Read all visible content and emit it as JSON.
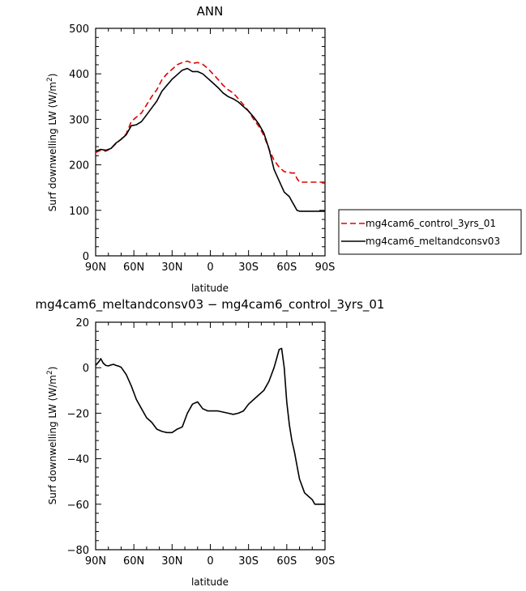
{
  "chart_data": [
    {
      "type": "line",
      "title": "ANN",
      "xlabel": "latitude",
      "ylabel": "Surf downwelling LW (W/m",
      "ylabel_sup": "2",
      "ylabel_end": ")",
      "xlim": [
        90,
        -90
      ],
      "ylim": [
        0,
        500
      ],
      "x_ticks": [
        {
          "value": 90,
          "label": "90N"
        },
        {
          "value": 60,
          "label": "60N"
        },
        {
          "value": 30,
          "label": "30N"
        },
        {
          "value": 0,
          "label": "0"
        },
        {
          "value": -30,
          "label": "30S"
        },
        {
          "value": -60,
          "label": "60S"
        },
        {
          "value": -90,
          "label": "90S"
        }
      ],
      "y_ticks": [
        0,
        100,
        200,
        300,
        400,
        500
      ],
      "legend_position": "right",
      "series": [
        {
          "name": "mg4cam6_control_3yrs_01",
          "color": "#e00000",
          "dash": "dashed",
          "x": [
            90,
            86,
            82,
            78,
            74,
            70,
            66,
            62,
            58,
            54,
            50,
            46,
            42,
            38,
            34,
            30,
            26,
            22,
            18,
            14,
            10,
            6,
            2,
            -2,
            -6,
            -10,
            -14,
            -18,
            -22,
            -26,
            -30,
            -34,
            -38,
            -42,
            -46,
            -50,
            -54,
            -58,
            -62,
            -64,
            -66,
            -68,
            -70,
            -72,
            -74,
            -76,
            -78,
            -80,
            -82,
            -84,
            -86,
            -88,
            -90
          ],
          "values": [
            227,
            232,
            230,
            236,
            247,
            256,
            268,
            295,
            305,
            314,
            332,
            350,
            365,
            387,
            400,
            410,
            420,
            425,
            428,
            423,
            425,
            421,
            412,
            400,
            388,
            375,
            365,
            358,
            345,
            332,
            318,
            300,
            285,
            265,
            235,
            210,
            195,
            185,
            183,
            182,
            182,
            170,
            162,
            162,
            162,
            162,
            162,
            162,
            162,
            162,
            162,
            162,
            162
          ]
        },
        {
          "name": "mg4cam6_meltandconsv03",
          "color": "#000000",
          "dash": "solid",
          "x": [
            90,
            86,
            82,
            78,
            74,
            70,
            66,
            62,
            58,
            54,
            50,
            46,
            42,
            38,
            34,
            30,
            26,
            22,
            18,
            14,
            10,
            6,
            2,
            -2,
            -6,
            -10,
            -14,
            -18,
            -22,
            -26,
            -30,
            -34,
            -38,
            -42,
            -46,
            -50,
            -54,
            -58,
            -62,
            -64,
            -66,
            -68,
            -70,
            -72,
            -74,
            -76,
            -78,
            -80,
            -82,
            -84,
            -86,
            -88,
            -90
          ],
          "values": [
            230,
            234,
            232,
            236,
            248,
            256,
            266,
            286,
            288,
            295,
            310,
            325,
            340,
            362,
            375,
            388,
            398,
            408,
            412,
            405,
            405,
            400,
            390,
            380,
            370,
            358,
            350,
            345,
            338,
            328,
            318,
            305,
            290,
            270,
            236,
            190,
            165,
            140,
            130,
            120,
            110,
            100,
            98,
            98,
            98,
            98,
            98,
            98,
            98,
            98,
            98,
            98,
            98
          ]
        }
      ]
    },
    {
      "type": "line",
      "title": "mg4cam6_meltandconsv03 − mg4cam6_control_3yrs_01",
      "xlabel": "latitude",
      "ylabel": "Surf downwelling LW (W/m",
      "ylabel_sup": "2",
      "ylabel_end": ")",
      "xlim": [
        90,
        -90
      ],
      "ylim": [
        -80,
        20
      ],
      "x_ticks": [
        {
          "value": 90,
          "label": "90N"
        },
        {
          "value": 60,
          "label": "60N"
        },
        {
          "value": 30,
          "label": "30N"
        },
        {
          "value": 0,
          "label": "0"
        },
        {
          "value": -30,
          "label": "30S"
        },
        {
          "value": -60,
          "label": "60S"
        },
        {
          "value": -90,
          "label": "90S"
        }
      ],
      "y_ticks": [
        -80,
        -60,
        -40,
        -20,
        0,
        20
      ],
      "series": [
        {
          "color": "#000000",
          "dash": "solid",
          "x": [
            90,
            87,
            86,
            84,
            82,
            80,
            78,
            76,
            74,
            72,
            70,
            66,
            62,
            58,
            54,
            50,
            46,
            42,
            38,
            34,
            30,
            26,
            22,
            18,
            14,
            10,
            6,
            2,
            -2,
            -6,
            -10,
            -14,
            -18,
            -22,
            -26,
            -30,
            -34,
            -38,
            -42,
            -46,
            -50,
            -52,
            -54,
            -56,
            -58,
            -60,
            -62,
            -64,
            -66,
            -68,
            -70,
            -72,
            -74,
            -76,
            -78,
            -80,
            -82,
            -84,
            -86,
            -88,
            -90
          ],
          "values": [
            1,
            3,
            4,
            2,
            1,
            0.8,
            1.2,
            1.5,
            1,
            0.7,
            0.2,
            -3,
            -8,
            -14,
            -18,
            -22,
            -24,
            -27,
            -28,
            -28.5,
            -28.5,
            -27,
            -26,
            -20,
            -16,
            -15,
            -18,
            -19,
            -19,
            -19,
            -19.5,
            -20,
            -20.5,
            -20,
            -19,
            -16,
            -14,
            -12,
            -10,
            -6,
            0,
            4,
            8,
            8.5,
            0,
            -15,
            -25,
            -32,
            -37,
            -43,
            -49,
            -52,
            -55,
            -56,
            -57,
            -58,
            -60,
            -60,
            -60,
            -60,
            -60
          ]
        }
      ]
    }
  ]
}
